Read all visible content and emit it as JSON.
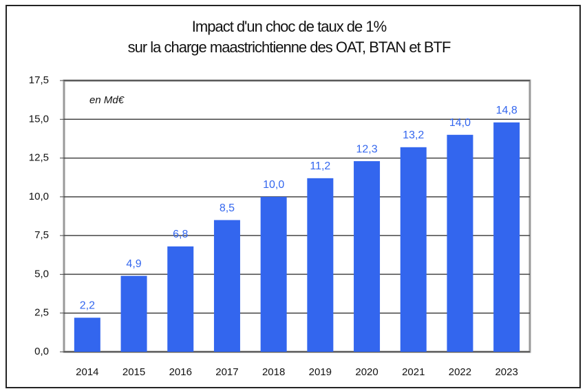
{
  "chart_data": {
    "type": "bar",
    "title": [
      "Impact d'un choc de taux de 1%",
      "sur la charge maastrichtienne des OAT, BTAN et BTF"
    ],
    "annotation": "en Md€",
    "categories": [
      "2014",
      "2015",
      "2016",
      "2017",
      "2018",
      "2019",
      "2020",
      "2021",
      "2022",
      "2023"
    ],
    "values": [
      2.2,
      4.9,
      6.8,
      8.5,
      10.0,
      11.2,
      12.3,
      13.2,
      14.0,
      14.8
    ],
    "value_labels": [
      "2,2",
      "4,9",
      "6,8",
      "8,5",
      "10,0",
      "11,2",
      "12,3",
      "13,2",
      "14,0",
      "14,8"
    ],
    "color": "#3366ee",
    "ylim": [
      0,
      17.5
    ],
    "yticks": [
      {
        "value": 0,
        "label": "0,0"
      },
      {
        "value": 2.5,
        "label": "2,5"
      },
      {
        "value": 5,
        "label": "5,0"
      },
      {
        "value": 7.5,
        "label": "7,5"
      },
      {
        "value": 10,
        "label": "10,0"
      },
      {
        "value": 12.5,
        "label": "12,5"
      },
      {
        "value": 15,
        "label": "15,0"
      },
      {
        "value": 17.5,
        "label": "17,5"
      }
    ],
    "grid": true
  }
}
